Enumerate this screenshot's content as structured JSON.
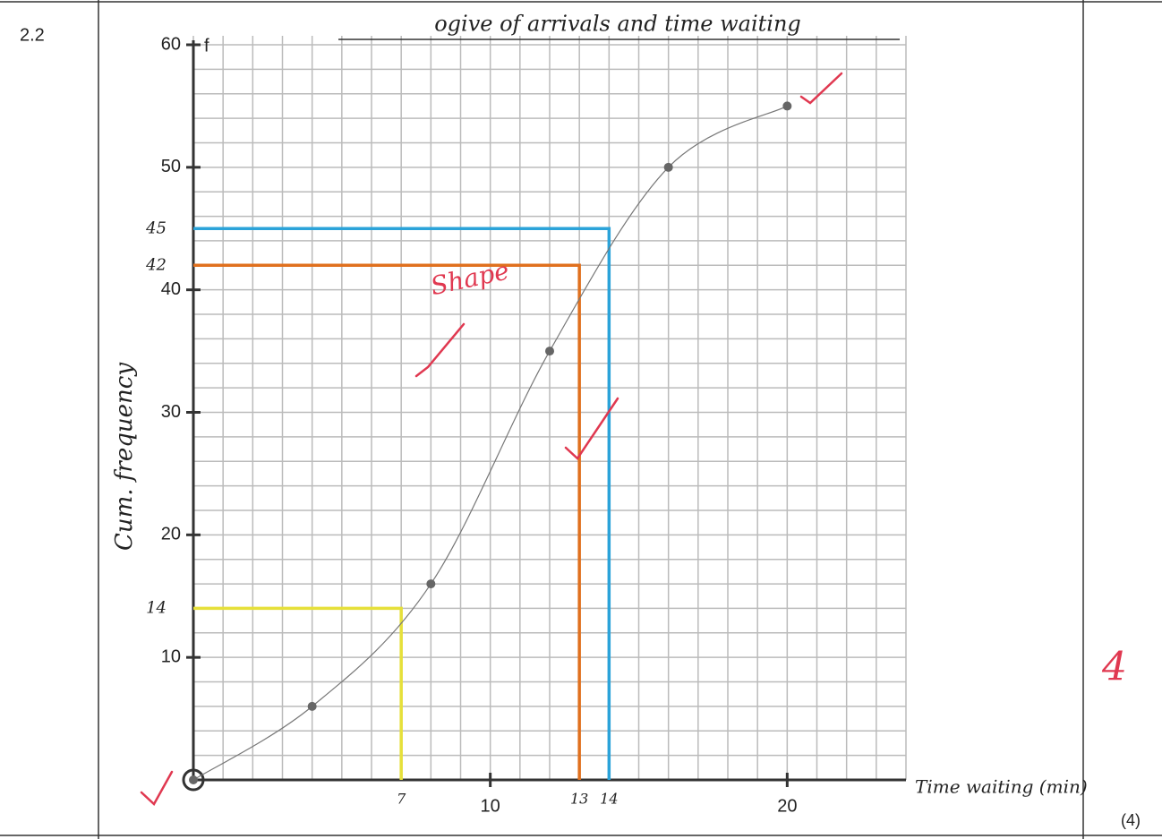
{
  "question_number": "2.2",
  "marks": "(4)",
  "score": "4",
  "chart_data": {
    "type": "line",
    "title": "ogive of arrivals and time waiting",
    "xlabel": "Time waiting (min)",
    "ylabel": "Cum. frequency",
    "y_axis_symbol": "f",
    "annotation": "Shape",
    "x": [
      0,
      4,
      8,
      12,
      16,
      20
    ],
    "values": [
      0,
      6,
      16,
      35,
      50,
      55
    ],
    "color": "#777777",
    "xlim": [
      0,
      24
    ],
    "ylim": [
      0,
      60
    ],
    "xticks": [
      10,
      20
    ],
    "yticks": [
      10,
      20,
      30,
      40,
      50,
      60
    ],
    "grid": true,
    "guides": [
      {
        "x": 7,
        "y": 14,
        "color": "#e6e03a"
      },
      {
        "x": 13,
        "y": 42,
        "color": "#e0701e"
      },
      {
        "x": 14,
        "y": 45,
        "color": "#2ba3d9"
      }
    ]
  }
}
